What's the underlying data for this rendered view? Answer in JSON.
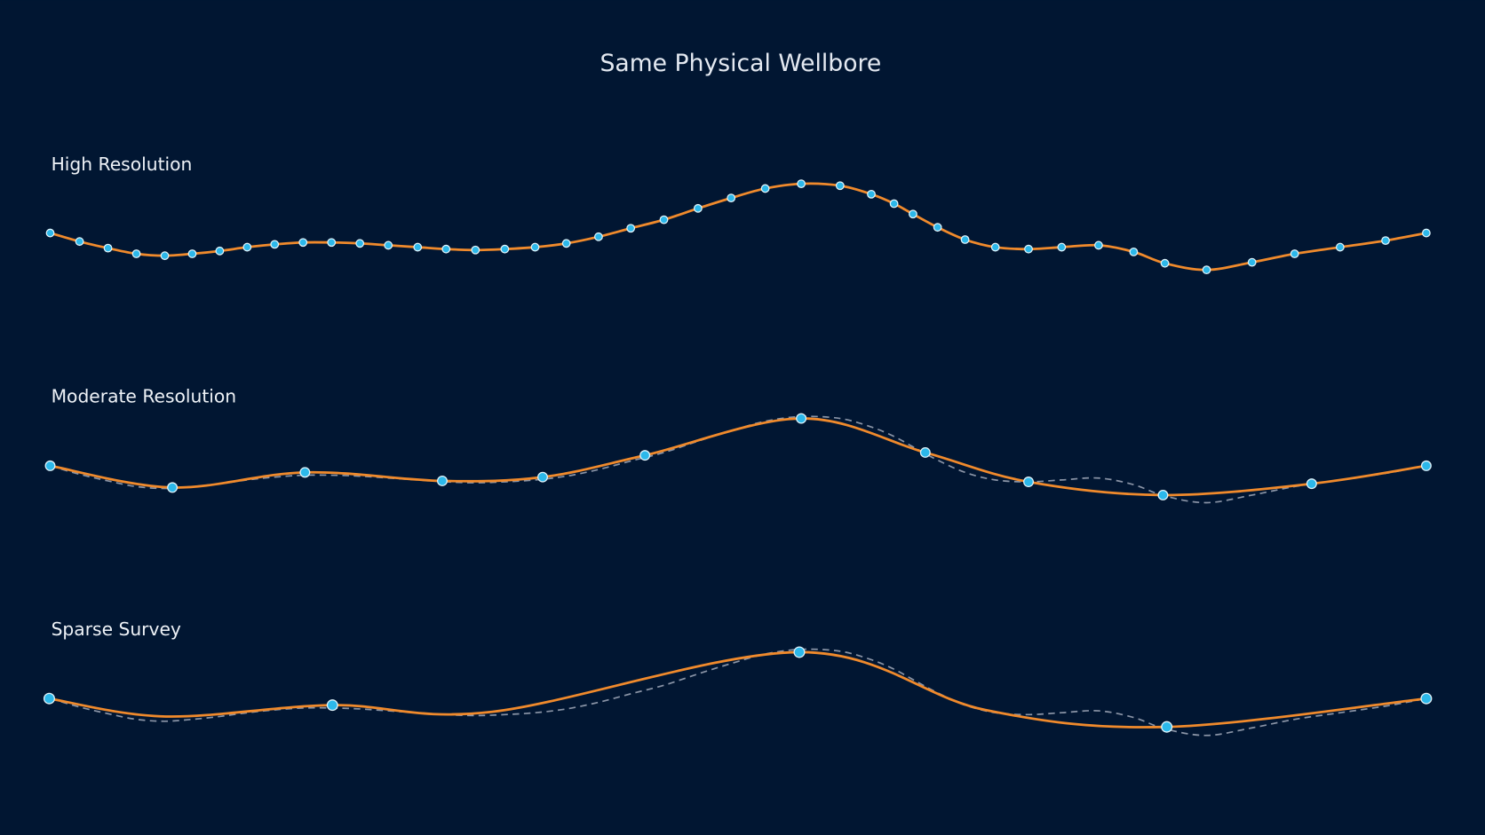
{
  "title": "Same Physical Wellbore",
  "panels": [
    {
      "label": "High Resolution"
    },
    {
      "label": "Moderate Resolution"
    },
    {
      "label": "Sparse Survey"
    }
  ]
}
